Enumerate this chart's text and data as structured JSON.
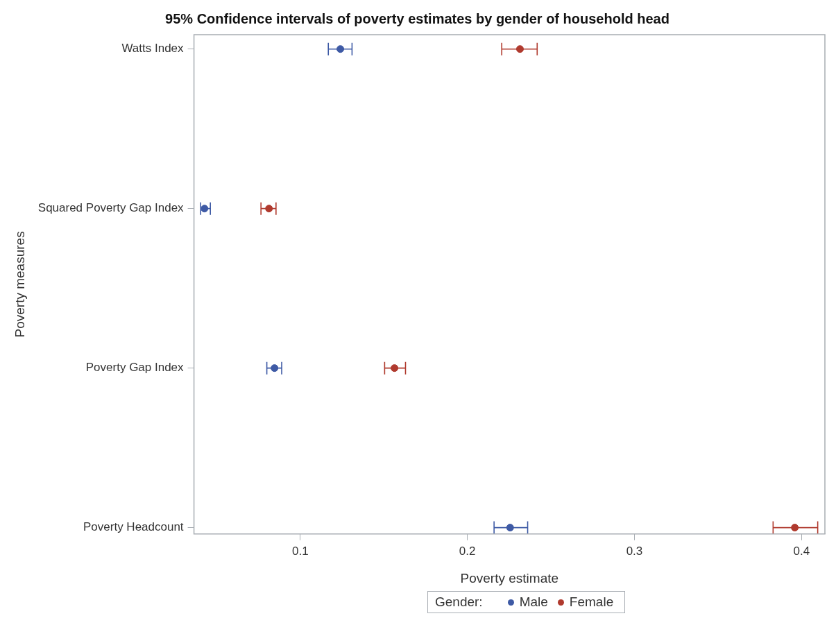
{
  "chart_data": {
    "type": "scatter",
    "orientation": "horizontal",
    "title": "95% Confidence intervals of poverty estimates by gender of household head",
    "xlabel": "Poverty estimate",
    "ylabel": "Poverty measures",
    "legend_title": "Gender:",
    "legend": "bottom",
    "marker": "circle",
    "categories": [
      "Watts Index",
      "Squared Poverty Gap Index",
      "Poverty Gap Index",
      "Poverty Headcount"
    ],
    "xlim": [
      0.0364,
      0.414
    ],
    "xticks": [
      0.1,
      0.2,
      0.3,
      0.4
    ],
    "series": [
      {
        "name": "Male",
        "color": "#3e5aa5",
        "values": [
          0.124,
          0.0427,
          0.0846,
          0.2256
        ],
        "errors": [
          [
            0.1168,
            0.131
          ],
          [
            0.0404,
            0.0462
          ],
          [
            0.08,
            0.0889
          ],
          [
            0.216,
            0.2361
          ]
        ]
      },
      {
        "name": "Female",
        "color": "#b03a2e",
        "values": [
          0.2315,
          0.0813,
          0.1564,
          0.396
        ],
        "errors": [
          [
            0.2206,
            0.2418
          ],
          [
            0.0765,
            0.0855
          ],
          [
            0.1505,
            0.163
          ],
          [
            0.383,
            0.4097
          ]
        ]
      }
    ]
  }
}
